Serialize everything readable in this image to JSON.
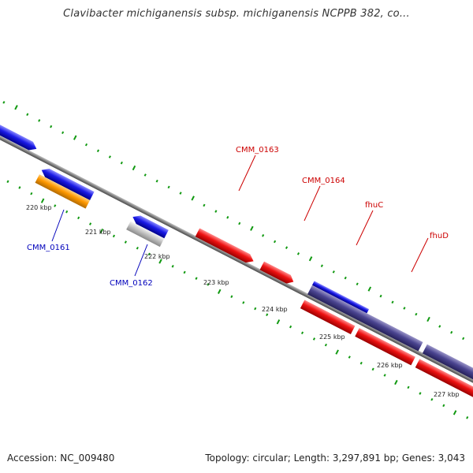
{
  "title": "Clavibacter michiganensis subsp. michiganensis NCPPB 382, co...",
  "footer": {
    "accession": "Accession: NC_009480",
    "summary": "Topology: circular; Length: 3,297,891 bp; Genes: 3,043"
  },
  "colors": {
    "forward_gene": "#ee1111",
    "reverse_gene": "#1a1ae6",
    "operon": "#4a4490",
    "orange_gene": "#ff9900",
    "grey_gene": "#c4c4c4",
    "backbone": "#808080",
    "ticks": "#119911",
    "label_red": "#cc0000",
    "label_blue": "#0000bb"
  },
  "kbp_labels": [
    "220 kbp",
    "221 kbp",
    "222 kbp",
    "223 kbp",
    "224 kbp",
    "225 kbp",
    "226 kbp",
    "227 kbp"
  ],
  "gene_labels": {
    "cmm_0161": "CMM_0161",
    "cmm_0162": "CMM_0162",
    "cmm_0163": "CMM_0163",
    "cmm_0164": "CMM_0164",
    "fhuc": "fhuC",
    "fhud": "fhuD"
  }
}
